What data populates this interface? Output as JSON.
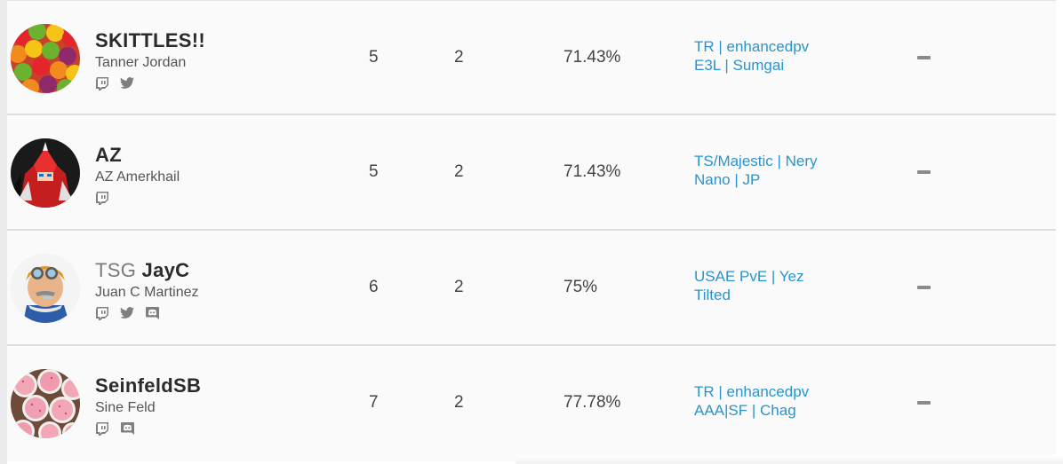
{
  "players": [
    {
      "tag_prefix": "",
      "tag": "SKITTLES!!",
      "real_name": "Tanner Jordan",
      "socials": [
        "twitch-icon",
        "twitter-icon"
      ],
      "avatar": "skittles-avatar",
      "wins": "5",
      "losses": "2",
      "win_pct": "71.43%",
      "teams": [
        "TR | enhancedpv",
        "E3L | Sumgai"
      ],
      "status": "—"
    },
    {
      "tag_prefix": "",
      "tag": "AZ",
      "real_name": "AZ Amerkhail",
      "socials": [
        "twitch-icon"
      ],
      "avatar": "red-robot-avatar",
      "wins": "5",
      "losses": "2",
      "win_pct": "71.43%",
      "teams": [
        "TS/Majestic | Nery",
        "Nano | JP"
      ],
      "status": "—"
    },
    {
      "tag_prefix": "TSG",
      "tag": "JayC",
      "real_name": "Juan C Martinez",
      "socials": [
        "twitch-icon",
        "twitter-icon",
        "discord-icon"
      ],
      "avatar": "aviator-avatar",
      "wins": "6",
      "losses": "2",
      "win_pct": "75%",
      "teams": [
        "USAE PvE | Yez",
        "Tilted"
      ],
      "status": "—"
    },
    {
      "tag_prefix": "",
      "tag": "SeinfeldSB",
      "real_name": "Sine Feld",
      "socials": [
        "twitch-icon",
        "discord-icon"
      ],
      "avatar": "cookies-avatar",
      "wins": "7",
      "losses": "2",
      "win_pct": "77.78%",
      "teams": [
        "TR | enhancedpv",
        "AAA|SF | Chag"
      ],
      "status": "—"
    }
  ],
  "colors": {
    "link": "#2a94cc",
    "row_bg": "#fafafa",
    "divider": "#dedede"
  }
}
